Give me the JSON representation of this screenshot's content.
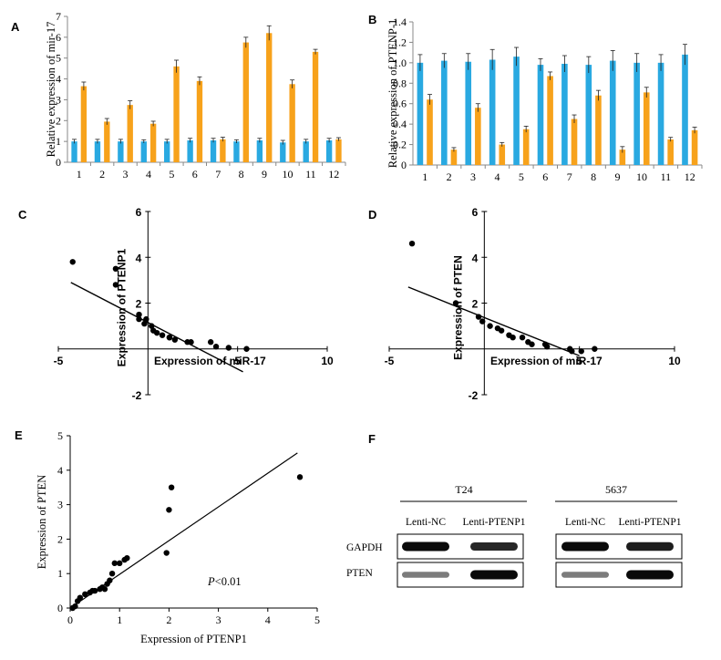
{
  "colors": {
    "blue": "#29a9e1",
    "orange": "#f7a21b",
    "ink": "#000000",
    "axis": "#888888"
  },
  "panels": {
    "a": "A",
    "b": "B",
    "c": "C",
    "d": "D",
    "e": "E",
    "f": "F"
  },
  "chart_data": [
    {
      "id": "A",
      "type": "bar",
      "ylabel": "Relative expression of mir-17",
      "categories": [
        "1",
        "2",
        "3",
        "4",
        "5",
        "6",
        "7",
        "8",
        "9",
        "10",
        "11",
        "12"
      ],
      "ylim": [
        0,
        7
      ],
      "yticks": [
        "0",
        "1",
        "2",
        "3",
        "4",
        "5",
        "6",
        "7"
      ],
      "series": [
        {
          "values": [
            1.0,
            1.0,
            1.0,
            1.0,
            1.0,
            1.05,
            1.05,
            1.0,
            1.05,
            0.95,
            1.0,
            1.05
          ],
          "errors": [
            0.1,
            0.1,
            0.1,
            0.08,
            0.1,
            0.1,
            0.1,
            0.08,
            0.1,
            0.1,
            0.1,
            0.1
          ]
        },
        {
          "values": [
            3.65,
            1.95,
            2.75,
            1.85,
            4.6,
            3.9,
            1.1,
            5.75,
            6.2,
            3.75,
            5.3,
            1.1
          ],
          "errors": [
            0.2,
            0.15,
            0.2,
            0.12,
            0.3,
            0.2,
            0.1,
            0.25,
            0.35,
            0.2,
            0.12,
            0.08
          ]
        }
      ]
    },
    {
      "id": "B",
      "type": "bar",
      "ylabel": "Relative expression of PTENP-1",
      "categories": [
        "1",
        "2",
        "3",
        "4",
        "5",
        "6",
        "7",
        "8",
        "9",
        "10",
        "11",
        "12"
      ],
      "ylim": [
        0,
        1.4
      ],
      "yticks": [
        "0",
        "0.2",
        "0.4",
        "0.6",
        "0.8",
        "1.0",
        "1.2",
        "1.4"
      ],
      "series": [
        {
          "values": [
            1.0,
            1.02,
            1.01,
            1.03,
            1.06,
            0.98,
            0.99,
            0.98,
            1.02,
            1.0,
            1.0,
            1.08
          ],
          "errors": [
            0.08,
            0.07,
            0.08,
            0.1,
            0.09,
            0.06,
            0.08,
            0.08,
            0.1,
            0.09,
            0.08,
            0.1
          ]
        },
        {
          "values": [
            0.64,
            0.15,
            0.56,
            0.2,
            0.35,
            0.87,
            0.45,
            0.68,
            0.15,
            0.71,
            0.25,
            0.34
          ],
          "errors": [
            0.05,
            0.02,
            0.04,
            0.02,
            0.03,
            0.04,
            0.04,
            0.05,
            0.03,
            0.05,
            0.02,
            0.03
          ]
        }
      ]
    },
    {
      "id": "C",
      "type": "scatter",
      "ylabel": "Expression of PTENP1",
      "xlabel": "Expression of miR-17",
      "xlim": [
        -5,
        10
      ],
      "ylim": [
        -2,
        6
      ],
      "xticks": [
        {
          "v": -5,
          "t": "-5"
        },
        {
          "v": 5,
          "t": "5"
        },
        {
          "v": 10,
          "t": "10"
        }
      ],
      "yticks": [
        {
          "v": -2,
          "t": "-2"
        },
        {
          "v": 2,
          "t": "2"
        },
        {
          "v": 4,
          "t": "4"
        },
        {
          "v": 6,
          "t": "6"
        }
      ],
      "points": [
        [
          -4.2,
          3.8
        ],
        [
          -1.8,
          3.5
        ],
        [
          -1.8,
          2.8
        ],
        [
          -0.5,
          1.5
        ],
        [
          -0.5,
          1.3
        ],
        [
          -0.2,
          1.1
        ],
        [
          0.2,
          1.0
        ],
        [
          -0.1,
          1.3
        ],
        [
          0.3,
          0.8
        ],
        [
          0.5,
          0.7
        ],
        [
          0.8,
          0.6
        ],
        [
          1.2,
          0.5
        ],
        [
          1.5,
          0.4
        ],
        [
          1.2,
          0.5
        ],
        [
          2.2,
          0.3
        ],
        [
          2.4,
          0.3
        ],
        [
          3.5,
          0.3
        ],
        [
          3.8,
          0.1
        ],
        [
          4.5,
          0.05
        ],
        [
          5.5,
          0.0
        ]
      ],
      "fit": [
        [
          -4.3,
          2.9
        ],
        [
          5.3,
          -1.0
        ]
      ]
    },
    {
      "id": "D",
      "type": "scatter",
      "ylabel": "Expression of PTEN",
      "xlabel": "Expression of miR-17",
      "xlim": [
        -5,
        10
      ],
      "ylim": [
        -2,
        6
      ],
      "xticks": [
        {
          "v": -5,
          "t": "-5"
        },
        {
          "v": 5,
          "t": "5"
        },
        {
          "v": 10,
          "t": "10"
        }
      ],
      "yticks": [
        {
          "v": -2,
          "t": "-2"
        },
        {
          "v": 2,
          "t": "2"
        },
        {
          "v": 4,
          "t": "4"
        },
        {
          "v": 6,
          "t": "6"
        }
      ],
      "points": [
        [
          -3.8,
          4.6
        ],
        [
          -1.5,
          2.0
        ],
        [
          -0.3,
          1.4
        ],
        [
          -0.1,
          1.2
        ],
        [
          0.3,
          1.0
        ],
        [
          0.7,
          0.9
        ],
        [
          0.9,
          0.8
        ],
        [
          1.3,
          0.6
        ],
        [
          1.5,
          0.5
        ],
        [
          2.0,
          0.5
        ],
        [
          2.3,
          0.3
        ],
        [
          2.5,
          0.2
        ],
        [
          3.2,
          0.2
        ],
        [
          3.3,
          0.1
        ],
        [
          4.5,
          0.0
        ],
        [
          4.6,
          -0.1
        ],
        [
          5.1,
          -0.1
        ],
        [
          5.8,
          0.0
        ]
      ],
      "fit": [
        [
          -4.0,
          2.7
        ],
        [
          5.0,
          -0.3
        ]
      ]
    },
    {
      "id": "E",
      "type": "scatter",
      "ylabel": "Expression of PTEN",
      "xlabel": "Expression of PTENP1",
      "xlim": [
        0,
        5
      ],
      "ylim": [
        0,
        5
      ],
      "xticks": [
        {
          "v": 0,
          "t": "0"
        },
        {
          "v": 1,
          "t": "1"
        },
        {
          "v": 2,
          "t": "2"
        },
        {
          "v": 3,
          "t": "3"
        },
        {
          "v": 4,
          "t": "4"
        },
        {
          "v": 5,
          "t": "5"
        }
      ],
      "yticks": [
        {
          "v": 0,
          "t": "0"
        },
        {
          "v": 1,
          "t": "1"
        },
        {
          "v": 2,
          "t": "2"
        },
        {
          "v": 3,
          "t": "3"
        },
        {
          "v": 4,
          "t": "4"
        },
        {
          "v": 5,
          "t": "5"
        }
      ],
      "points": [
        [
          0.05,
          0.0
        ],
        [
          0.1,
          0.05
        ],
        [
          0.15,
          0.2
        ],
        [
          0.2,
          0.3
        ],
        [
          0.3,
          0.4
        ],
        [
          0.4,
          0.45
        ],
        [
          0.45,
          0.5
        ],
        [
          0.5,
          0.5
        ],
        [
          0.6,
          0.55
        ],
        [
          0.65,
          0.6
        ],
        [
          0.7,
          0.55
        ],
        [
          0.75,
          0.7
        ],
        [
          0.8,
          0.8
        ],
        [
          0.85,
          1.0
        ],
        [
          0.9,
          1.3
        ],
        [
          1.0,
          1.3
        ],
        [
          1.1,
          1.4
        ],
        [
          1.15,
          1.45
        ],
        [
          1.95,
          1.6
        ],
        [
          2.0,
          2.85
        ],
        [
          2.05,
          3.5
        ],
        [
          4.65,
          3.8
        ]
      ],
      "fit": [
        [
          0.0,
          0.0
        ],
        [
          4.6,
          4.5
        ]
      ],
      "annotation": "<0.01",
      "annotation_italic": "P"
    }
  ],
  "western": {
    "blocks": [
      {
        "cell_line": "T24",
        "lanes": [
          "Lenti-NC",
          "Lenti-PTENP1"
        ],
        "gapdh": [
          1.0,
          0.85
        ],
        "pten": [
          0.4,
          1.0
        ]
      },
      {
        "cell_line": "5637",
        "lanes": [
          "Lenti-NC",
          "Lenti-PTENP1"
        ],
        "gapdh": [
          1.0,
          0.9
        ],
        "pten": [
          0.4,
          1.0
        ]
      }
    ],
    "rows": [
      "GAPDH",
      "PTEN"
    ]
  }
}
